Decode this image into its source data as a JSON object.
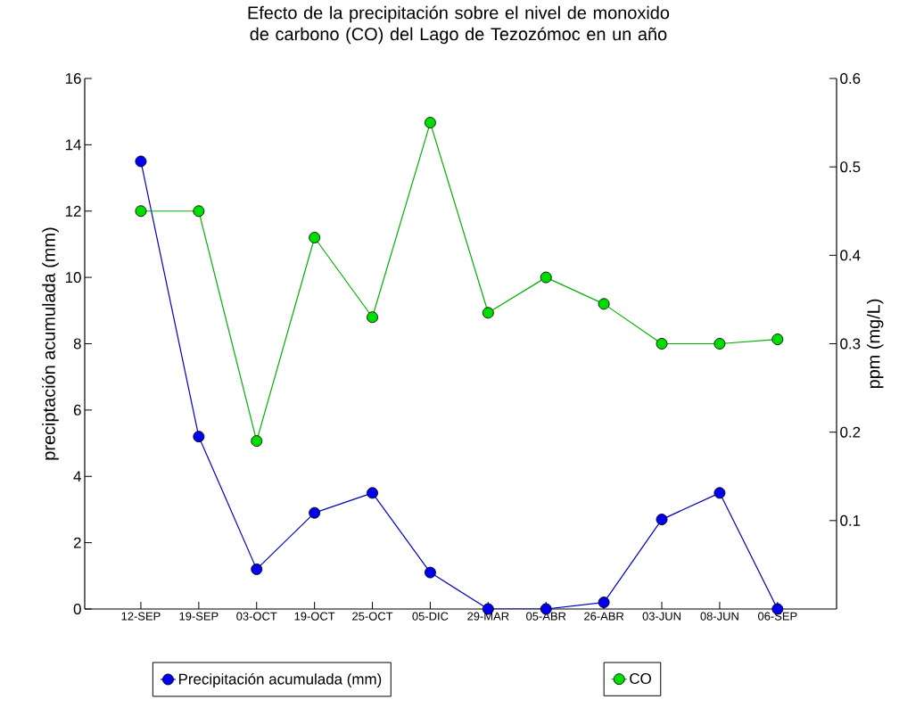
{
  "chart_data": {
    "type": "line",
    "title": "Efecto de la precipitación sobre el nivel de monoxido de carbono (CO) del Lago de Tezozómoc en un año",
    "ylabel": "preciptación acumulada (mm)",
    "y2label": "ppm (mg/L)",
    "categories": [
      "12-SEP",
      "19-SEP",
      "03-OCT",
      "19-OCT",
      "25-OCT",
      "05-DIC",
      "29-MAR",
      "05-ABR",
      "26-ABR",
      "03-JUN",
      "08-JUN",
      "06-SEP"
    ],
    "series": [
      {
        "name": "Precipitación acumulada (mm)",
        "color": "#0000ee",
        "values": [
          13.5,
          5.2,
          1.2,
          2.9,
          3.5,
          1.1,
          0,
          0,
          0.2,
          2.7,
          3.5,
          0
        ]
      },
      {
        "name": "CO",
        "color": "#00dd00",
        "axis": "y2",
        "values": [
          0.45,
          0.45,
          0.19,
          0.42,
          0.33,
          0.55,
          0.335,
          0.375,
          0.345,
          0.3,
          0.3,
          0.305
        ]
      }
    ],
    "ylim": [
      0,
      16
    ],
    "yticks": [
      0,
      2,
      4,
      6,
      8,
      10,
      12,
      14,
      16
    ],
    "y2lim": [
      0,
      0.6
    ],
    "y2ticks": [
      0.1,
      0.2,
      0.3,
      0.4,
      0.5,
      0.6
    ],
    "legend": "bottom",
    "marker": "circle",
    "line_style": "solid",
    "grid": false
  }
}
